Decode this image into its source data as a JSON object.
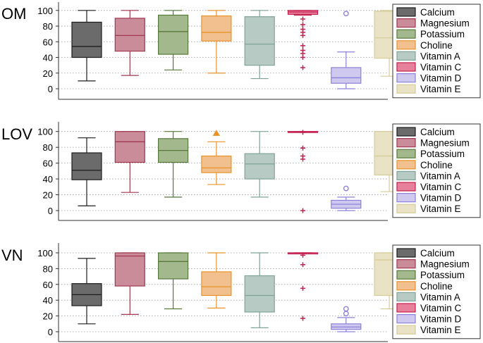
{
  "chart_data": [
    {
      "type": "boxplot",
      "title": "OM",
      "ylim": [
        -10,
        105
      ],
      "yticks": [
        0,
        20,
        40,
        60,
        80,
        100
      ],
      "grid": "horizontal dotted",
      "legend_position": "right",
      "series": [
        {
          "name": "Calcium",
          "min": 10,
          "q1": 40,
          "median": 54,
          "q3": 85,
          "max": 100,
          "outliers": [],
          "outlier_marker": "none"
        },
        {
          "name": "Magnesium",
          "min": 17,
          "q1": 48,
          "median": 68,
          "q3": 90,
          "max": 100,
          "outliers": [],
          "outlier_marker": "none"
        },
        {
          "name": "Potassium",
          "min": 24,
          "q1": 44,
          "median": 73,
          "q3": 94,
          "max": 100,
          "outliers": [],
          "outlier_marker": "none"
        },
        {
          "name": "Choline",
          "min": 20,
          "q1": 61,
          "median": 72,
          "q3": 93,
          "max": 100,
          "outliers": [],
          "outlier_marker": "none"
        },
        {
          "name": "Vitamin A",
          "min": 13,
          "q1": 30,
          "median": 57,
          "q3": 92,
          "max": 100,
          "outliers": [],
          "outlier_marker": "none"
        },
        {
          "name": "Vitamin C",
          "min": 94,
          "q1": 95,
          "median": 98,
          "q3": 100,
          "max": 100,
          "outliers": [
            89,
            82,
            76,
            72,
            68,
            55,
            49,
            45,
            40,
            27
          ],
          "outlier_marker": "plus"
        },
        {
          "name": "Vitamin D",
          "min": 0,
          "q1": 7,
          "median": 14,
          "q3": 27,
          "max": 47,
          "outliers": [
            96
          ],
          "outlier_marker": "circle"
        },
        {
          "name": "Vitamin E",
          "min": 16,
          "q1": 39,
          "median": 65,
          "q3": 99,
          "max": 100,
          "outliers": [],
          "outlier_marker": "none"
        }
      ]
    },
    {
      "type": "boxplot",
      "title": "LOV",
      "ylim": [
        -10,
        113
      ],
      "yticks": [
        0,
        20,
        40,
        60,
        80,
        100
      ],
      "grid": "horizontal dotted",
      "legend_position": "right",
      "series": [
        {
          "name": "Calcium",
          "min": 6,
          "q1": 39,
          "median": 51,
          "q3": 73,
          "max": 92,
          "outliers": [],
          "outlier_marker": "none"
        },
        {
          "name": "Magnesium",
          "min": 23,
          "q1": 61,
          "median": 87,
          "q3": 100,
          "max": 100,
          "outliers": [],
          "outlier_marker": "none"
        },
        {
          "name": "Potassium",
          "min": 17,
          "q1": 61,
          "median": 76,
          "q3": 91,
          "max": 100,
          "outliers": [],
          "outlier_marker": "none"
        },
        {
          "name": "Choline",
          "min": 33,
          "q1": 48,
          "median": 54,
          "q3": 69,
          "max": 87,
          "outliers": [
            98
          ],
          "outlier_marker": "triangle"
        },
        {
          "name": "Vitamin A",
          "min": 17,
          "q1": 40,
          "median": 59,
          "q3": 72,
          "max": 100,
          "outliers": [],
          "outlier_marker": "none"
        },
        {
          "name": "Vitamin C",
          "min": 100,
          "q1": 100,
          "median": 100,
          "q3": 100,
          "max": 100,
          "outliers": [
            99,
            79,
            69,
            65,
            0
          ],
          "outlier_marker": "plus"
        },
        {
          "name": "Vitamin D",
          "min": 0,
          "q1": 3,
          "median": 8,
          "q3": 13,
          "max": 17,
          "outliers": [
            28
          ],
          "outlier_marker": "circle"
        },
        {
          "name": "Vitamin E",
          "min": 24,
          "q1": 45,
          "median": 69,
          "q3": 100,
          "max": 100,
          "outliers": [],
          "outlier_marker": "none"
        }
      ]
    },
    {
      "type": "boxplot",
      "title": "VN",
      "ylim": [
        -10,
        113
      ],
      "yticks": [
        0,
        20,
        40,
        60,
        80,
        100
      ],
      "grid": "horizontal dotted",
      "legend_position": "right",
      "series": [
        {
          "name": "Calcium",
          "min": 10,
          "q1": 33,
          "median": 47,
          "q3": 61,
          "max": 93,
          "outliers": [],
          "outlier_marker": "none"
        },
        {
          "name": "Magnesium",
          "min": 22,
          "q1": 58,
          "median": 96,
          "q3": 100,
          "max": 100,
          "outliers": [],
          "outlier_marker": "none"
        },
        {
          "name": "Potassium",
          "min": 29,
          "q1": 67,
          "median": 89,
          "q3": 100,
          "max": 100,
          "outliers": [],
          "outlier_marker": "none"
        },
        {
          "name": "Choline",
          "min": 30,
          "q1": 46,
          "median": 57,
          "q3": 76,
          "max": 100,
          "outliers": [],
          "outlier_marker": "none"
        },
        {
          "name": "Vitamin A",
          "min": 5,
          "q1": 25,
          "median": 46,
          "q3": 71,
          "max": 100,
          "outliers": [],
          "outlier_marker": "none"
        },
        {
          "name": "Vitamin C",
          "min": 100,
          "q1": 100,
          "median": 100,
          "q3": 100,
          "max": 100,
          "outliers": [
            97,
            85,
            55,
            17
          ],
          "outlier_marker": "plus"
        },
        {
          "name": "Vitamin D",
          "min": 0,
          "q1": 3,
          "median": 6,
          "q3": 10,
          "max": 18,
          "outliers": [
            23,
            29
          ],
          "outlier_marker": "circle"
        },
        {
          "name": "Vitamin E",
          "min": 29,
          "q1": 46,
          "median": 91,
          "q3": 100,
          "max": 100,
          "outliers": [],
          "outlier_marker": "none"
        }
      ]
    }
  ],
  "colors": {
    "Calcium": {
      "fill": "#6b6b6b",
      "stroke": "#1c1c1c"
    },
    "Magnesium": {
      "fill": "#c98c98",
      "stroke": "#a1384f"
    },
    "Potassium": {
      "fill": "#a4b88e",
      "stroke": "#57793a"
    },
    "Choline": {
      "fill": "#f2c08e",
      "stroke": "#e8932a"
    },
    "Vitamin A": {
      "fill": "#b8cac4",
      "stroke": "#7fa39a"
    },
    "Vitamin C": {
      "fill": "#e6809b",
      "stroke": "#c4204f"
    },
    "Vitamin D": {
      "fill": "#cfc9ef",
      "stroke": "#8c82d9"
    },
    "Vitamin E": {
      "fill": "#e9e2c4",
      "stroke": "#d7cb98"
    }
  }
}
